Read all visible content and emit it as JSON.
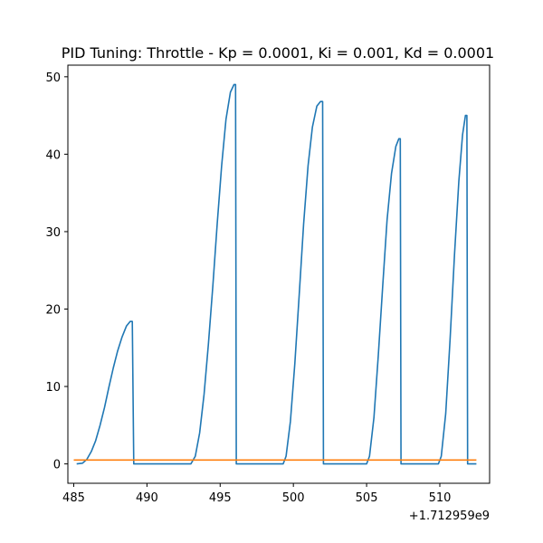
{
  "chart_data": {
    "type": "line",
    "title": "PID Tuning: Throttle - Kp = 0.0001, Ki = 0.001, Kd = 0.0001",
    "xlabel": "",
    "ylabel": "",
    "x_offset_label": "+1.712959e9",
    "xlim": [
      484.6,
      513.4
    ],
    "ylim": [
      -2.5,
      51.5
    ],
    "x_ticks": [
      485,
      490,
      495,
      500,
      505,
      510
    ],
    "y_ticks": [
      0,
      10,
      20,
      30,
      40,
      50
    ],
    "grid": false,
    "colors": {
      "output": "#1f77b4",
      "setpoint": "#ff7f0e"
    },
    "series": [
      {
        "points": [
          [
            485.2,
            0.0
          ],
          [
            485.6,
            0.1
          ],
          [
            485.9,
            0.6
          ],
          [
            486.2,
            1.6
          ],
          [
            486.5,
            3.0
          ],
          [
            486.8,
            5.0
          ],
          [
            487.1,
            7.3
          ],
          [
            487.4,
            9.9
          ],
          [
            487.7,
            12.4
          ],
          [
            488.0,
            14.6
          ],
          [
            488.3,
            16.4
          ],
          [
            488.6,
            17.8
          ],
          [
            488.85,
            18.4
          ],
          [
            489.0,
            18.4
          ],
          [
            489.1,
            0.0
          ],
          [
            493.0,
            0.0
          ],
          [
            493.3,
            1.0
          ],
          [
            493.6,
            4.0
          ],
          [
            493.9,
            9.0
          ],
          [
            494.2,
            15.5
          ],
          [
            494.5,
            23.0
          ],
          [
            494.8,
            31.0
          ],
          [
            495.1,
            38.5
          ],
          [
            495.4,
            44.5
          ],
          [
            495.7,
            48.0
          ],
          [
            495.95,
            49.0
          ],
          [
            496.05,
            49.0
          ],
          [
            496.1,
            0.0
          ],
          [
            499.3,
            0.0
          ],
          [
            499.5,
            1.0
          ],
          [
            499.8,
            5.5
          ],
          [
            500.1,
            13.0
          ],
          [
            500.4,
            22.0
          ],
          [
            500.7,
            31.0
          ],
          [
            501.0,
            38.5
          ],
          [
            501.3,
            43.5
          ],
          [
            501.6,
            46.2
          ],
          [
            501.85,
            46.8
          ],
          [
            502.0,
            46.8
          ],
          [
            502.05,
            0.0
          ],
          [
            505.0,
            0.0
          ],
          [
            505.2,
            1.0
          ],
          [
            505.5,
            6.0
          ],
          [
            505.8,
            14.0
          ],
          [
            506.1,
            23.0
          ],
          [
            506.4,
            31.5
          ],
          [
            506.7,
            37.5
          ],
          [
            507.0,
            41.0
          ],
          [
            507.2,
            42.0
          ],
          [
            507.3,
            42.0
          ],
          [
            507.35,
            0.0
          ],
          [
            509.9,
            0.0
          ],
          [
            510.1,
            1.0
          ],
          [
            510.4,
            6.5
          ],
          [
            510.7,
            16.0
          ],
          [
            511.0,
            27.0
          ],
          [
            511.3,
            36.5
          ],
          [
            511.55,
            42.5
          ],
          [
            511.75,
            45.0
          ],
          [
            511.85,
            45.0
          ],
          [
            511.9,
            0.0
          ],
          [
            512.5,
            0.0
          ]
        ]
      },
      {
        "points": [
          [
            485.0,
            0.5
          ],
          [
            512.5,
            0.5
          ]
        ]
      }
    ]
  }
}
